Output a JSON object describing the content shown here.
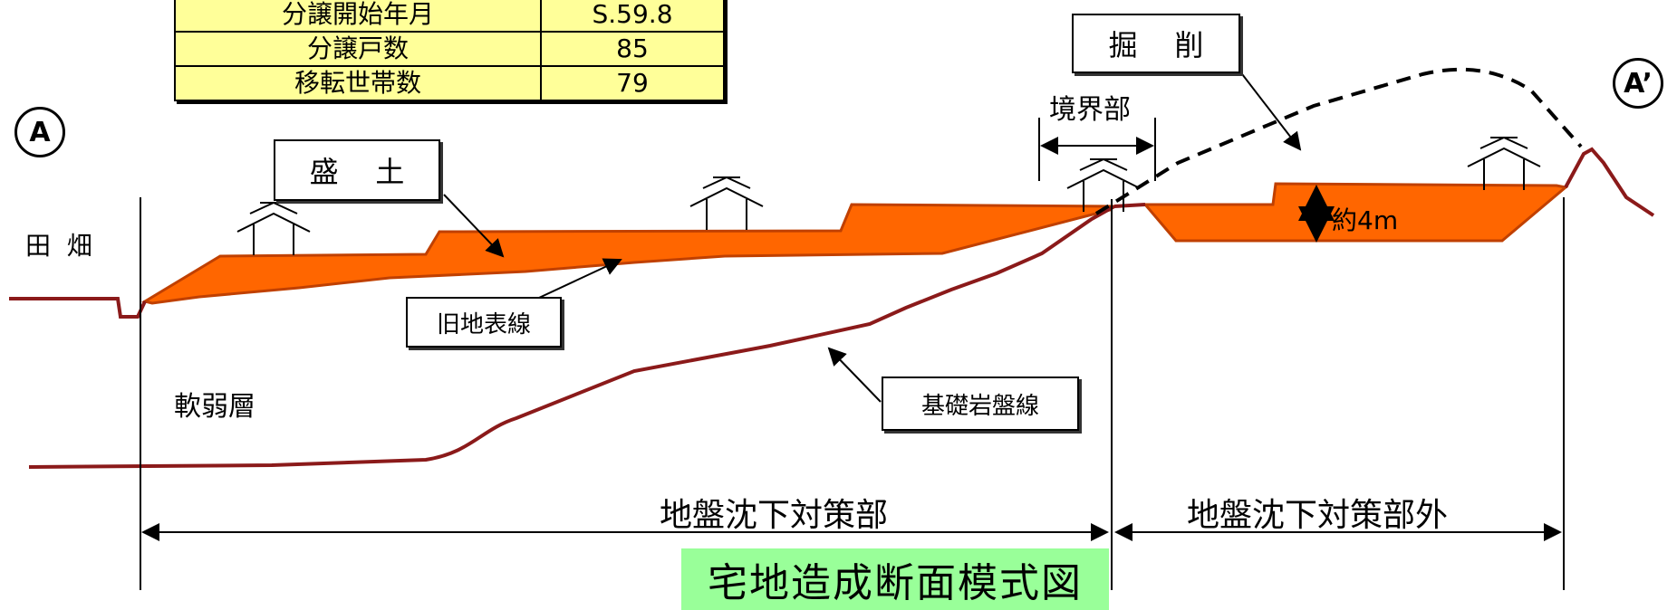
{
  "table": {
    "rows": [
      {
        "label": "分譲開始年月",
        "value": "S.59.8"
      },
      {
        "label": "分譲戸数",
        "value": "85"
      },
      {
        "label": "移転世帯数",
        "value": "79"
      }
    ]
  },
  "points": {
    "start": "A",
    "end": "A’"
  },
  "labels": {
    "fields": "田  畑",
    "fill": "盛    土",
    "cut": "掘    削",
    "boundary": "境界部",
    "old_surface": "旧地表線",
    "bedrock": "基礎岩盤線",
    "soft_layer": "軟弱層",
    "depth": "約4m",
    "countermeasure": "地盤沈下対策部",
    "outside": "地盤沈下対策部外"
  },
  "caption": "宅地造成断面模式図",
  "colors": {
    "fill": "#ff6600",
    "ground": "#8b1a1a",
    "caption_bg": "#99ff99",
    "table_bg": "#ffff99"
  }
}
